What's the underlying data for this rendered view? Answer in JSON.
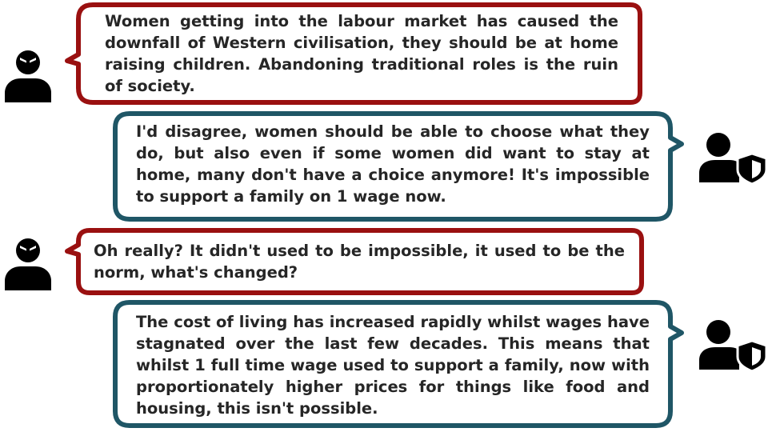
{
  "colors": {
    "attacker_border": "#9a1010",
    "defender_border": "#1f5666",
    "text": "#262626",
    "icon": "#000000",
    "background": "#ffffff"
  },
  "icons": {
    "attacker": "angry-person-icon",
    "defender": "person-shield-icon"
  },
  "messages": [
    {
      "speaker": "attacker",
      "text": "Women getting into the labour market has caused the downfall of Western civilisation, they should be at home raising children. Abandoning traditional roles is the ruin of society."
    },
    {
      "speaker": "defender",
      "text": "I'd disagree, women should be able to choose what they do, but also even if some women did want to stay at home, many don't have a choice anymore! It's impossible to support a family on 1 wage now."
    },
    {
      "speaker": "attacker",
      "text": "Oh really? It didn't used to be impossible, it used to be the norm, what's changed?"
    },
    {
      "speaker": "defender",
      "text": "The cost of living has increased rapidly whilst wages have stagnated over the last few decades. This means that whilst 1 full time wage used to support a family, now with proportionately higher prices for things like food and housing, this isn't possible."
    }
  ]
}
